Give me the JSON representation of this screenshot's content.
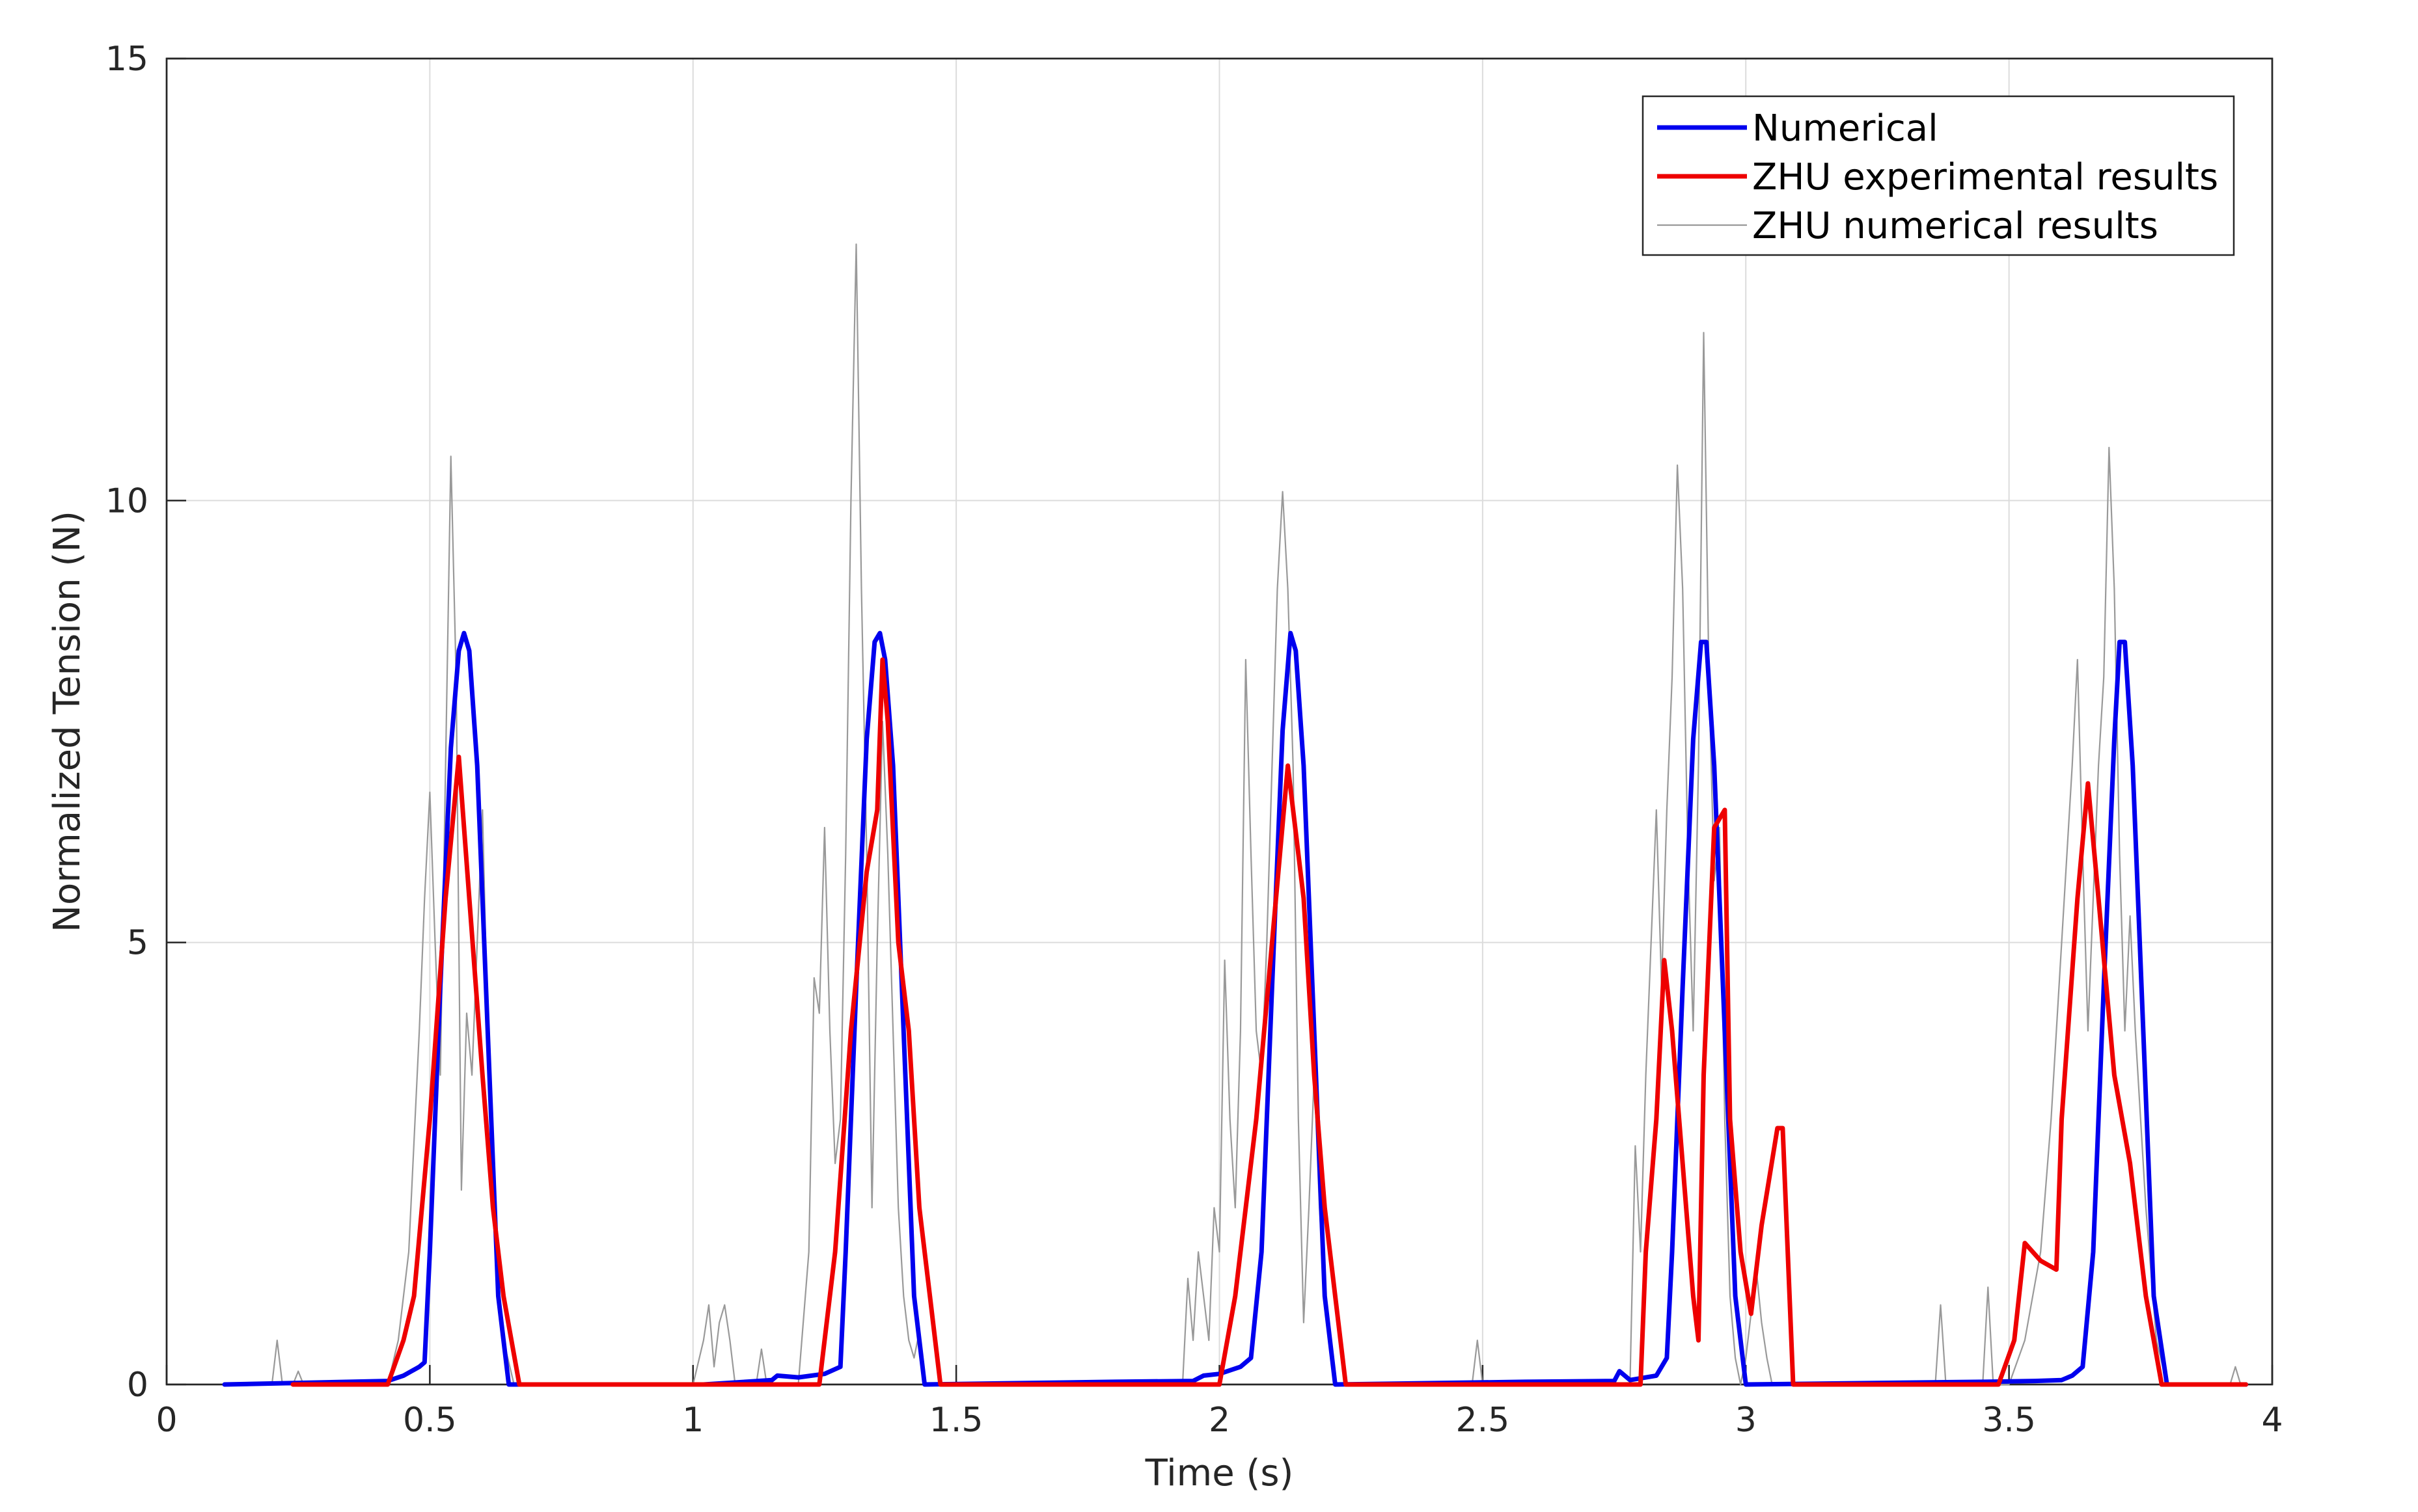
{
  "chart_data": {
    "type": "line",
    "title": "",
    "xlabel": "Time (s)",
    "ylabel": "Normalized Tension (N)",
    "xlim": [
      0,
      4
    ],
    "ylim": [
      0,
      15
    ],
    "x_ticks": [
      0,
      0.5,
      1,
      1.5,
      2,
      2.5,
      3,
      3.5,
      4
    ],
    "x_tick_labels": [
      "0",
      "0.5",
      "1",
      "1.5",
      "2",
      "2.5",
      "3",
      "3.5",
      "4"
    ],
    "y_ticks": [
      0,
      5,
      10,
      15
    ],
    "y_tick_labels": [
      "0",
      "5",
      "10",
      "15"
    ],
    "grid": true,
    "legend_position": "top-right",
    "series": [
      {
        "name": "Numerical",
        "color": "#0000ee",
        "style": "thick",
        "points": [
          [
            0.11,
            0.0
          ],
          [
            0.42,
            0.04
          ],
          [
            0.45,
            0.1
          ],
          [
            0.48,
            0.2
          ],
          [
            0.49,
            0.25
          ],
          [
            0.5,
            1.5
          ],
          [
            0.52,
            4.5
          ],
          [
            0.54,
            7.2
          ],
          [
            0.555,
            8.3
          ],
          [
            0.565,
            8.5
          ],
          [
            0.575,
            8.3
          ],
          [
            0.59,
            7.0
          ],
          [
            0.61,
            4.0
          ],
          [
            0.63,
            1.0
          ],
          [
            0.65,
            0.0
          ],
          [
            1.02,
            0.0
          ],
          [
            1.1,
            0.03
          ],
          [
            1.15,
            0.05
          ],
          [
            1.16,
            0.1
          ],
          [
            1.2,
            0.08
          ],
          [
            1.25,
            0.12
          ],
          [
            1.28,
            0.2
          ],
          [
            1.29,
            1.5
          ],
          [
            1.31,
            4.5
          ],
          [
            1.33,
            7.3
          ],
          [
            1.345,
            8.4
          ],
          [
            1.355,
            8.5
          ],
          [
            1.365,
            8.2
          ],
          [
            1.38,
            7.0
          ],
          [
            1.4,
            4.0
          ],
          [
            1.42,
            1.0
          ],
          [
            1.44,
            0.0
          ],
          [
            1.8,
            0.03
          ],
          [
            1.95,
            0.04
          ],
          [
            1.97,
            0.1
          ],
          [
            2.0,
            0.12
          ],
          [
            2.04,
            0.2
          ],
          [
            2.06,
            0.3
          ],
          [
            2.08,
            1.5
          ],
          [
            2.1,
            4.5
          ],
          [
            2.12,
            7.4
          ],
          [
            2.135,
            8.5
          ],
          [
            2.145,
            8.3
          ],
          [
            2.16,
            7.0
          ],
          [
            2.18,
            4.0
          ],
          [
            2.2,
            1.0
          ],
          [
            2.22,
            0.0
          ],
          [
            2.58,
            0.03
          ],
          [
            2.75,
            0.04
          ],
          [
            2.76,
            0.15
          ],
          [
            2.78,
            0.05
          ],
          [
            2.83,
            0.1
          ],
          [
            2.85,
            0.3
          ],
          [
            2.86,
            1.5
          ],
          [
            2.88,
            4.5
          ],
          [
            2.9,
            7.3
          ],
          [
            2.915,
            8.4
          ],
          [
            2.925,
            8.4
          ],
          [
            2.94,
            7.0
          ],
          [
            2.96,
            4.0
          ],
          [
            2.98,
            1.0
          ],
          [
            3.0,
            0.0
          ],
          [
            3.45,
            0.03
          ],
          [
            3.55,
            0.04
          ],
          [
            3.6,
            0.05
          ],
          [
            3.62,
            0.1
          ],
          [
            3.64,
            0.2
          ],
          [
            3.66,
            1.5
          ],
          [
            3.68,
            4.5
          ],
          [
            3.7,
            7.3
          ],
          [
            3.71,
            8.4
          ],
          [
            3.72,
            8.4
          ],
          [
            3.735,
            7.0
          ],
          [
            3.755,
            4.0
          ],
          [
            3.775,
            1.0
          ],
          [
            3.8,
            0.0
          ],
          [
            3.95,
            0.0
          ]
        ]
      },
      {
        "name": "ZHU experimental results",
        "color": "#ee0000",
        "style": "thick",
        "points": [
          [
            0.24,
            0.0
          ],
          [
            0.42,
            0.0
          ],
          [
            0.45,
            0.5
          ],
          [
            0.47,
            1.0
          ],
          [
            0.5,
            3.0
          ],
          [
            0.53,
            5.5
          ],
          [
            0.555,
            7.1
          ],
          [
            0.575,
            5.5
          ],
          [
            0.6,
            3.5
          ],
          [
            0.62,
            2.0
          ],
          [
            0.64,
            1.0
          ],
          [
            0.67,
            0.0
          ],
          [
            1.0,
            0.0
          ],
          [
            1.24,
            0.0
          ],
          [
            1.27,
            1.5
          ],
          [
            1.3,
            4.0
          ],
          [
            1.33,
            5.8
          ],
          [
            1.35,
            6.5
          ],
          [
            1.36,
            8.2
          ],
          [
            1.37,
            7.5
          ],
          [
            1.39,
            5.0
          ],
          [
            1.41,
            4.0
          ],
          [
            1.43,
            2.0
          ],
          [
            1.45,
            1.0
          ],
          [
            1.47,
            0.0
          ],
          [
            1.8,
            0.0
          ],
          [
            2.0,
            0.0
          ],
          [
            2.03,
            1.0
          ],
          [
            2.07,
            3.0
          ],
          [
            2.1,
            5.0
          ],
          [
            2.13,
            7.0
          ],
          [
            2.16,
            5.5
          ],
          [
            2.18,
            3.5
          ],
          [
            2.2,
            2.0
          ],
          [
            2.22,
            1.0
          ],
          [
            2.24,
            0.0
          ],
          [
            2.58,
            0.0
          ],
          [
            2.8,
            0.0
          ],
          [
            2.81,
            1.5
          ],
          [
            2.83,
            3.0
          ],
          [
            2.845,
            4.8
          ],
          [
            2.86,
            4.0
          ],
          [
            2.88,
            2.5
          ],
          [
            2.9,
            1.0
          ],
          [
            2.91,
            0.5
          ],
          [
            2.92,
            3.5
          ],
          [
            2.94,
            6.3
          ],
          [
            2.96,
            6.5
          ],
          [
            2.97,
            3.0
          ],
          [
            2.99,
            1.5
          ],
          [
            3.01,
            0.8
          ],
          [
            3.03,
            1.8
          ],
          [
            3.06,
            2.9
          ],
          [
            3.07,
            2.9
          ],
          [
            3.09,
            0.0
          ],
          [
            3.46,
            0.0
          ],
          [
            3.48,
            0.0
          ],
          [
            3.51,
            0.5
          ],
          [
            3.53,
            1.6
          ],
          [
            3.56,
            1.4
          ],
          [
            3.59,
            1.3
          ],
          [
            3.6,
            3.0
          ],
          [
            3.63,
            5.5
          ],
          [
            3.65,
            6.8
          ],
          [
            3.67,
            5.5
          ],
          [
            3.7,
            3.5
          ],
          [
            3.73,
            2.5
          ],
          [
            3.76,
            1.0
          ],
          [
            3.79,
            0.0
          ],
          [
            3.95,
            0.0
          ]
        ]
      },
      {
        "name": "ZHU numerical results",
        "color": "#999999",
        "style": "thin",
        "points": [
          [
            0.11,
            0.0
          ],
          [
            0.2,
            0.0
          ],
          [
            0.21,
            0.5
          ],
          [
            0.22,
            0.0
          ],
          [
            0.24,
            0.0
          ],
          [
            0.25,
            0.15
          ],
          [
            0.26,
            0.0
          ],
          [
            0.42,
            0.0
          ],
          [
            0.44,
            0.5
          ],
          [
            0.46,
            1.5
          ],
          [
            0.48,
            4.0
          ],
          [
            0.49,
            5.5
          ],
          [
            0.5,
            6.7
          ],
          [
            0.51,
            5.0
          ],
          [
            0.52,
            3.5
          ],
          [
            0.53,
            7.0
          ],
          [
            0.54,
            10.5
          ],
          [
            0.55,
            8.0
          ],
          [
            0.56,
            2.2
          ],
          [
            0.57,
            4.2
          ],
          [
            0.58,
            3.5
          ],
          [
            0.59,
            5.0
          ],
          [
            0.6,
            6.5
          ],
          [
            0.61,
            4.0
          ],
          [
            0.62,
            2.0
          ],
          [
            0.64,
            0.5
          ],
          [
            0.66,
            0.0
          ],
          [
            1.0,
            0.0
          ],
          [
            1.02,
            0.5
          ],
          [
            1.03,
            0.9
          ],
          [
            1.04,
            0.2
          ],
          [
            1.05,
            0.7
          ],
          [
            1.06,
            0.9
          ],
          [
            1.07,
            0.5
          ],
          [
            1.08,
            0.0
          ],
          [
            1.12,
            0.0
          ],
          [
            1.13,
            0.4
          ],
          [
            1.14,
            0.0
          ],
          [
            1.2,
            0.0
          ],
          [
            1.22,
            1.5
          ],
          [
            1.23,
            4.6
          ],
          [
            1.24,
            4.2
          ],
          [
            1.25,
            6.3
          ],
          [
            1.26,
            4.0
          ],
          [
            1.27,
            2.5
          ],
          [
            1.28,
            3.0
          ],
          [
            1.29,
            6.0
          ],
          [
            1.3,
            10.0
          ],
          [
            1.31,
            12.9
          ],
          [
            1.32,
            9.0
          ],
          [
            1.33,
            6.0
          ],
          [
            1.34,
            2.0
          ],
          [
            1.35,
            5.0
          ],
          [
            1.36,
            7.5
          ],
          [
            1.37,
            6.0
          ],
          [
            1.38,
            4.0
          ],
          [
            1.39,
            2.0
          ],
          [
            1.4,
            1.0
          ],
          [
            1.41,
            0.5
          ],
          [
            1.42,
            0.3
          ],
          [
            1.43,
            0.6
          ],
          [
            1.44,
            0.0
          ],
          [
            1.8,
            0.0
          ],
          [
            1.93,
            0.0
          ],
          [
            1.94,
            1.2
          ],
          [
            1.95,
            0.5
          ],
          [
            1.96,
            1.5
          ],
          [
            1.97,
            1.0
          ],
          [
            1.98,
            0.5
          ],
          [
            1.99,
            2.0
          ],
          [
            2.0,
            1.5
          ],
          [
            2.01,
            4.8
          ],
          [
            2.02,
            3.0
          ],
          [
            2.03,
            2.0
          ],
          [
            2.04,
            4.0
          ],
          [
            2.05,
            8.2
          ],
          [
            2.06,
            6.0
          ],
          [
            2.07,
            4.0
          ],
          [
            2.08,
            3.5
          ],
          [
            2.09,
            5.0
          ],
          [
            2.1,
            7.0
          ],
          [
            2.11,
            9.0
          ],
          [
            2.12,
            10.1
          ],
          [
            2.13,
            9.0
          ],
          [
            2.14,
            7.0
          ],
          [
            2.15,
            3.0
          ],
          [
            2.16,
            0.7
          ],
          [
            2.17,
            2.0
          ],
          [
            2.18,
            3.5
          ],
          [
            2.19,
            2.0
          ],
          [
            2.2,
            1.0
          ],
          [
            2.22,
            0.0
          ],
          [
            2.48,
            0.0
          ],
          [
            2.49,
            0.5
          ],
          [
            2.5,
            0.0
          ],
          [
            2.58,
            0.0
          ],
          [
            2.78,
            0.0
          ],
          [
            2.79,
            2.7
          ],
          [
            2.8,
            1.5
          ],
          [
            2.81,
            3.5
          ],
          [
            2.82,
            5.0
          ],
          [
            2.83,
            6.5
          ],
          [
            2.84,
            4.5
          ],
          [
            2.85,
            6.5
          ],
          [
            2.86,
            8.0
          ],
          [
            2.87,
            10.4
          ],
          [
            2.88,
            9.0
          ],
          [
            2.89,
            6.0
          ],
          [
            2.9,
            4.0
          ],
          [
            2.91,
            7.0
          ],
          [
            2.92,
            11.9
          ],
          [
            2.93,
            8.0
          ],
          [
            2.94,
            5.7
          ],
          [
            2.95,
            6.3
          ],
          [
            2.96,
            3.0
          ],
          [
            2.97,
            1.0
          ],
          [
            2.98,
            0.3
          ],
          [
            2.99,
            0.0
          ],
          [
            3.0,
            0.3
          ],
          [
            3.01,
            0.8
          ],
          [
            3.02,
            1.3
          ],
          [
            3.03,
            0.7
          ],
          [
            3.04,
            0.3
          ],
          [
            3.05,
            0.0
          ],
          [
            3.36,
            0.0
          ],
          [
            3.37,
            0.9
          ],
          [
            3.38,
            0.0
          ],
          [
            3.45,
            0.0
          ],
          [
            3.46,
            1.1
          ],
          [
            3.47,
            0.0
          ],
          [
            3.5,
            0.0
          ],
          [
            3.53,
            0.5
          ],
          [
            3.56,
            1.5
          ],
          [
            3.58,
            3.0
          ],
          [
            3.6,
            5.0
          ],
          [
            3.62,
            7.0
          ],
          [
            3.63,
            8.2
          ],
          [
            3.64,
            6.0
          ],
          [
            3.65,
            4.0
          ],
          [
            3.66,
            5.5
          ],
          [
            3.67,
            7.0
          ],
          [
            3.68,
            8.0
          ],
          [
            3.69,
            10.6
          ],
          [
            3.7,
            9.0
          ],
          [
            3.71,
            6.0
          ],
          [
            3.72,
            4.0
          ],
          [
            3.73,
            5.3
          ],
          [
            3.74,
            4.0
          ],
          [
            3.76,
            2.0
          ],
          [
            3.78,
            0.5
          ],
          [
            3.8,
            0.0
          ],
          [
            3.92,
            0.0
          ],
          [
            3.93,
            0.2
          ],
          [
            3.94,
            0.0
          ],
          [
            3.95,
            0.0
          ]
        ]
      }
    ]
  }
}
